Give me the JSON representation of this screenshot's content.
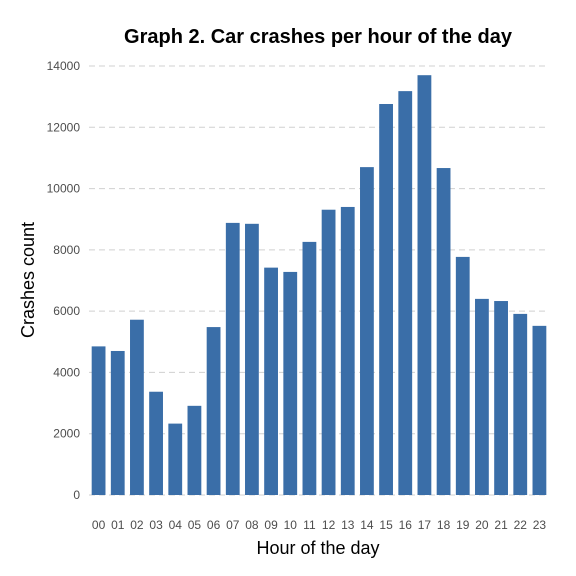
{
  "chart_data": {
    "type": "bar",
    "title": "Graph 2. Car crashes per hour of the day",
    "xlabel": "Hour of the day",
    "ylabel": "Crashes count",
    "categories": [
      "00",
      "01",
      "02",
      "03",
      "04",
      "05",
      "06",
      "07",
      "08",
      "09",
      "10",
      "11",
      "12",
      "13",
      "14",
      "15",
      "16",
      "17",
      "18",
      "19",
      "20",
      "21",
      "22",
      "23"
    ],
    "values": [
      4850,
      4700,
      5720,
      3370,
      2330,
      2910,
      5480,
      8880,
      8850,
      7420,
      7280,
      8260,
      9310,
      9400,
      10700,
      12760,
      13180,
      13700,
      10670,
      7770,
      6400,
      6330,
      5910,
      5520
    ],
    "ylim": [
      0,
      14000
    ],
    "yticks": [
      0,
      2000,
      4000,
      6000,
      8000,
      10000,
      12000,
      14000
    ],
    "grid": "horizontal",
    "bar_color": "#3a6ea8"
  }
}
